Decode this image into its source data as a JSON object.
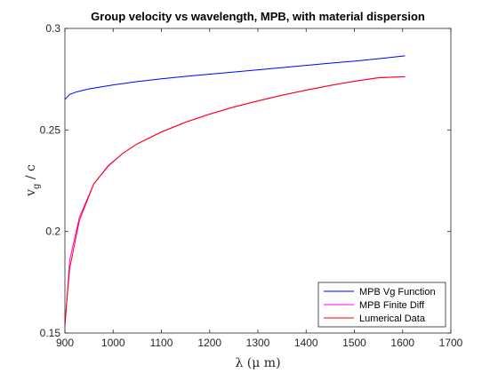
{
  "chart_data": {
    "type": "line",
    "title": "Group velocity vs wavelength, MPB, with material dispersion",
    "xlabel": "λ (μ m)",
    "ylabel": "v_g / c",
    "ylabel_main": "v",
    "ylabel_sub": "g",
    "ylabel_tail": " / c",
    "xlim": [
      900,
      1700
    ],
    "ylim": [
      0.15,
      0.3
    ],
    "xticks": [
      900,
      1000,
      1100,
      1200,
      1300,
      1400,
      1500,
      1600,
      1700
    ],
    "yticks": [
      0.15,
      0.2,
      0.25,
      0.3
    ],
    "xtick_labels": [
      "900",
      "1000",
      "1100",
      "1200",
      "1300",
      "1400",
      "1500",
      "1600",
      "1700"
    ],
    "ytick_labels": [
      "0.15",
      "0.2",
      "0.25",
      "0.3"
    ],
    "grid": false,
    "legend_position": "bottom-right",
    "series": [
      {
        "name": "MPB Vg Function",
        "color": "#0000ff",
        "x": [
          900,
          910,
          925,
          950,
          1000,
          1050,
          1100,
          1150,
          1200,
          1250,
          1300,
          1350,
          1400,
          1450,
          1500,
          1550,
          1605
        ],
        "y": [
          0.265,
          0.2675,
          0.2688,
          0.2702,
          0.2722,
          0.2738,
          0.2752,
          0.2764,
          0.2775,
          0.2785,
          0.2796,
          0.2807,
          0.2818,
          0.2829,
          0.2839,
          0.2851,
          0.2865
        ]
      },
      {
        "name": "MPB Finite Diff",
        "color": "#ff00ff",
        "x": [
          900,
          910,
          930,
          960,
          990,
          1020,
          1050,
          1100,
          1150,
          1200,
          1250,
          1300,
          1350,
          1400,
          1450,
          1500,
          1550,
          1605
        ],
        "y": [
          0.153,
          0.186,
          0.207,
          0.2235,
          0.2325,
          0.2385,
          0.2432,
          0.249,
          0.2538,
          0.2578,
          0.2613,
          0.2643,
          0.2671,
          0.2696,
          0.2719,
          0.274,
          0.2758,
          0.2762
        ]
      },
      {
        "name": "Lumerical Data",
        "color": "#ff0000",
        "x": [
          900,
          910,
          930,
          960,
          990,
          1020,
          1050,
          1100,
          1150,
          1200,
          1250,
          1300,
          1350,
          1400,
          1450,
          1500,
          1550,
          1605
        ],
        "y": [
          0.155,
          0.182,
          0.2055,
          0.2235,
          0.2322,
          0.2385,
          0.2432,
          0.249,
          0.2538,
          0.2578,
          0.2613,
          0.2643,
          0.2671,
          0.2696,
          0.2719,
          0.274,
          0.2757,
          0.2762
        ]
      }
    ]
  }
}
